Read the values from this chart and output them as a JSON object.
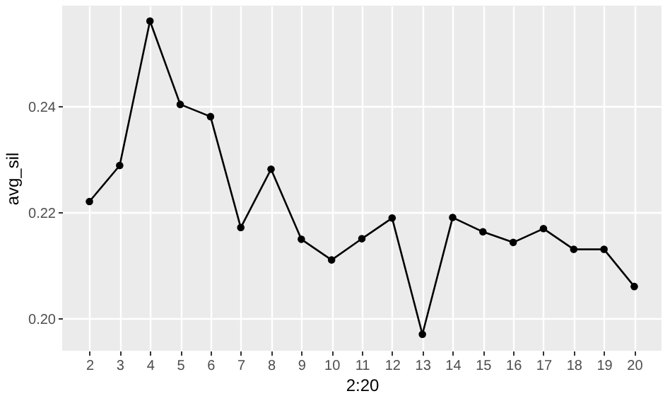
{
  "chart_data": {
    "type": "line",
    "xlabel": "2:20",
    "ylabel": "avg_sil",
    "x": [
      2,
      3,
      4,
      5,
      6,
      7,
      8,
      9,
      10,
      11,
      12,
      13,
      14,
      15,
      16,
      17,
      18,
      19,
      20
    ],
    "series": [
      {
        "color": "#000000",
        "values": [
          0.2221,
          0.2289,
          0.2561,
          0.2404,
          0.2381,
          0.2172,
          0.2282,
          0.215,
          0.2111,
          0.2151,
          0.219,
          0.1971,
          0.2191,
          0.2164,
          0.2144,
          0.217,
          0.2131,
          0.2131,
          0.2061
        ]
      }
    ],
    "xlim": [
      1.1,
      20.9
    ],
    "xticks": [
      2,
      3,
      4,
      5,
      6,
      7,
      8,
      9,
      10,
      11,
      12,
      13,
      14,
      15,
      16,
      17,
      18,
      19,
      20
    ],
    "ylim": [
      0.194,
      0.259
    ],
    "yticks": [
      {
        "value": 0.2,
        "label": "0.20"
      },
      {
        "value": 0.22,
        "label": "0.22"
      },
      {
        "value": 0.24,
        "label": "0.24"
      }
    ],
    "grid": true,
    "marker": "circle",
    "line_style": "solid"
  }
}
